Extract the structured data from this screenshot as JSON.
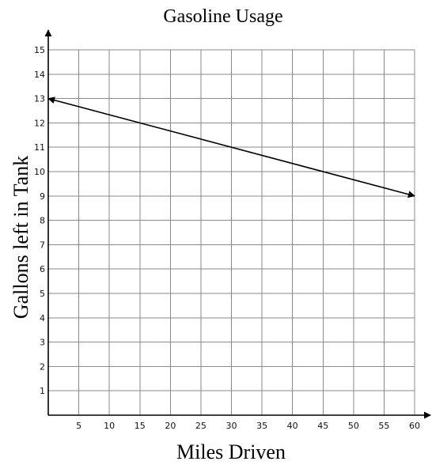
{
  "chart_data": {
    "type": "line",
    "title": "Gasoline Usage",
    "xlabel": "Miles Driven",
    "ylabel": "Gallons left in Tank",
    "xlim": [
      0,
      60
    ],
    "ylim": [
      0,
      15
    ],
    "x_ticks": [
      5,
      10,
      15,
      20,
      25,
      30,
      35,
      40,
      45,
      50,
      55,
      60
    ],
    "y_ticks": [
      1,
      2,
      3,
      4,
      5,
      6,
      7,
      8,
      9,
      10,
      11,
      12,
      13,
      14,
      15
    ],
    "grid": true,
    "series": [
      {
        "x": [
          0,
          60
        ],
        "y": [
          13,
          9
        ],
        "arrows": "both"
      }
    ],
    "colors": {
      "line": "#000000",
      "grid": "#8a8a8a",
      "axis": "#000000"
    }
  }
}
